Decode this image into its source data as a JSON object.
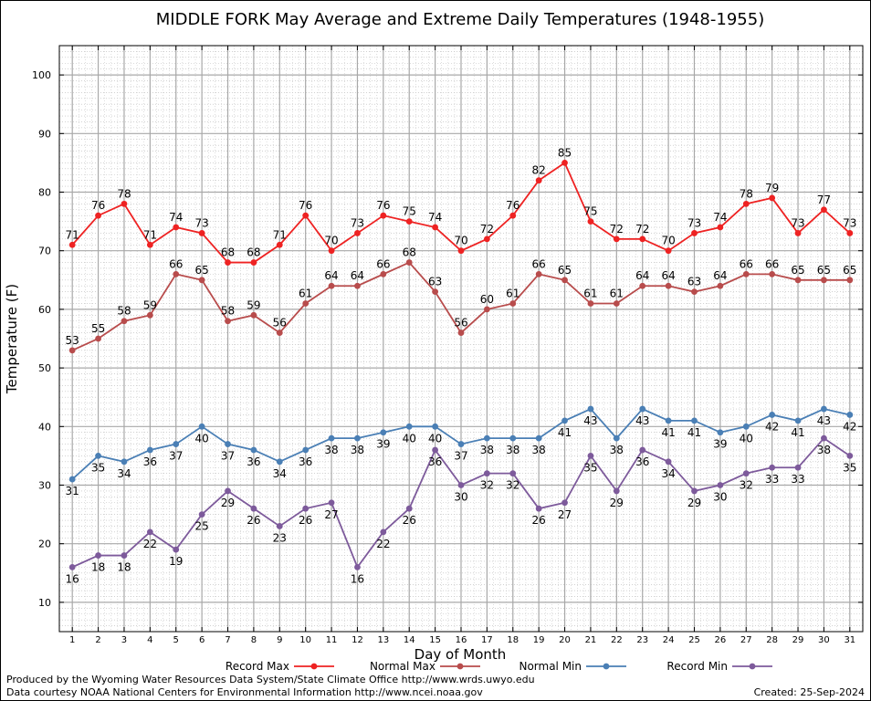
{
  "chart_data": {
    "type": "line",
    "title": "MIDDLE FORK May Average and Extreme Daily Temperatures (1948-1955)",
    "xlabel": "Day of Month",
    "ylabel": "Temperature (F)",
    "x": [
      1,
      2,
      3,
      4,
      5,
      6,
      7,
      8,
      9,
      10,
      11,
      12,
      13,
      14,
      15,
      16,
      17,
      18,
      19,
      20,
      21,
      22,
      23,
      24,
      25,
      26,
      27,
      28,
      29,
      30,
      31
    ],
    "xlim": [
      0.5,
      31.5
    ],
    "ylim": [
      5,
      105
    ],
    "yticks": [
      10,
      20,
      30,
      40,
      50,
      60,
      70,
      80,
      90,
      100
    ],
    "grid": true,
    "legend_position": "bottom",
    "series": [
      {
        "name": "Record Max",
        "color": "#ee2222",
        "label_position": "above",
        "values": [
          71,
          76,
          78,
          71,
          74,
          73,
          68,
          68,
          71,
          76,
          70,
          73,
          76,
          75,
          74,
          70,
          72,
          76,
          82,
          85,
          75,
          72,
          72,
          70,
          73,
          74,
          78,
          79,
          73,
          77,
          73
        ]
      },
      {
        "name": "Normal Max",
        "color": "#b84c4c",
        "label_position": "above",
        "values": [
          53,
          55,
          58,
          59,
          66,
          65,
          58,
          59,
          56,
          61,
          64,
          64,
          66,
          68,
          63,
          56,
          60,
          61,
          66,
          65,
          61,
          61,
          64,
          64,
          63,
          64,
          66,
          66,
          65,
          65,
          65
        ]
      },
      {
        "name": "Normal Min",
        "color": "#4a7fb5",
        "label_position": "below",
        "values": [
          31,
          35,
          34,
          36,
          37,
          40,
          37,
          36,
          34,
          36,
          38,
          38,
          39,
          40,
          40,
          37,
          38,
          38,
          38,
          41,
          43,
          38,
          43,
          41,
          41,
          39,
          40,
          42,
          41,
          43,
          42
        ]
      },
      {
        "name": "Record Min",
        "color": "#7d5a9b",
        "label_position": "below",
        "values": [
          16,
          18,
          18,
          22,
          19,
          25,
          29,
          26,
          23,
          26,
          27,
          16,
          22,
          26,
          36,
          30,
          32,
          32,
          26,
          27,
          35,
          29,
          36,
          34,
          29,
          30,
          32,
          33,
          33,
          38,
          35
        ]
      }
    ]
  },
  "footer": {
    "produced_by": "Produced by the Wyoming Water Resources Data System/State Climate Office http://www.wrds.uwyo.edu",
    "courtesy": "Data courtesy NOAA National Centers for Environmental Information http://www.ncei.noaa.gov",
    "created": "Created:  25-Sep-2024"
  }
}
